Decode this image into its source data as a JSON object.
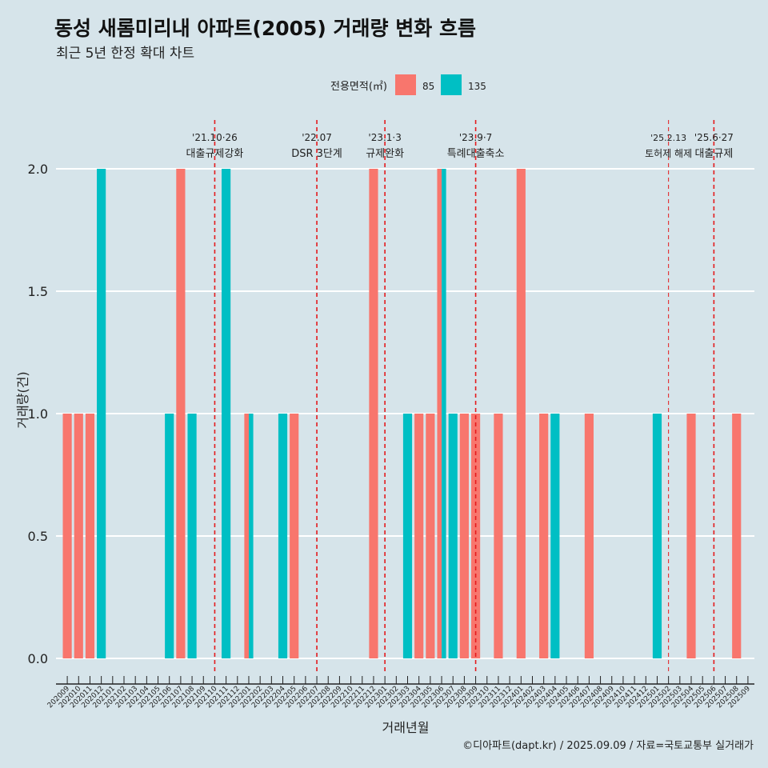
{
  "title": "동성 새롬미리내 아파트(2005) 거래량 변화 흐름",
  "subtitle": "최근 5년 한정 확대 차트",
  "caption": "©디아파트(dapt.kr) / 2025.09.09 / 자료=국토교통부 실거래가",
  "colors": {
    "background": "#d6e4ea",
    "grid": "#ffffff",
    "vline": "#e41a1c"
  },
  "chart_data": {
    "type": "bar",
    "xlabel": "거래년월",
    "ylabel": "거래량(건)",
    "ylim": [
      0,
      2
    ],
    "yticks": [
      0.0,
      0.5,
      1.0,
      1.5,
      2.0
    ],
    "ytick_labels": [
      "0.0",
      "0.5",
      "1.0",
      "1.5",
      "2.0"
    ],
    "grid": true,
    "legend": {
      "title": "전용면적(㎡)",
      "position": "top"
    },
    "categories": [
      "202009",
      "202010",
      "202011",
      "202012",
      "202101",
      "202102",
      "202103",
      "202104",
      "202105",
      "202106",
      "202107",
      "202108",
      "202109",
      "202110",
      "202111",
      "202112",
      "202201",
      "202202",
      "202203",
      "202204",
      "202205",
      "202206",
      "202207",
      "202208",
      "202209",
      "202210",
      "202211",
      "202212",
      "202301",
      "202302",
      "202303",
      "202304",
      "202305",
      "202306",
      "202307",
      "202308",
      "202309",
      "202310",
      "202311",
      "202312",
      "202401",
      "202402",
      "202403",
      "202404",
      "202405",
      "202406",
      "202407",
      "202408",
      "202409",
      "202410",
      "202411",
      "202412",
      "202501",
      "202502",
      "202503",
      "202504",
      "202505",
      "202506",
      "202507",
      "202508",
      "202509"
    ],
    "series": [
      {
        "name": "85",
        "color": "#f8766d",
        "values": [
          1,
          1,
          1,
          0,
          0,
          0,
          0,
          0,
          0,
          0,
          2,
          0,
          0,
          0,
          0,
          0,
          1,
          0,
          0,
          0,
          1,
          0,
          0,
          0,
          0,
          0,
          0,
          2,
          0,
          0,
          0,
          1,
          1,
          2,
          0,
          1,
          1,
          0,
          1,
          0,
          2,
          0,
          1,
          0,
          0,
          0,
          1,
          0,
          0,
          0,
          0,
          0,
          0,
          0,
          0,
          1,
          0,
          0,
          0,
          1,
          0
        ]
      },
      {
        "name": "135",
        "color": "#00bfc4",
        "values": [
          0,
          0,
          0,
          2,
          0,
          0,
          0,
          0,
          0,
          1,
          0,
          1,
          0,
          0,
          2,
          0,
          1,
          0,
          0,
          1,
          0,
          0,
          0,
          0,
          0,
          0,
          0,
          0,
          0,
          0,
          1,
          0,
          0,
          2,
          1,
          0,
          0,
          0,
          0,
          0,
          0,
          0,
          0,
          1,
          0,
          0,
          0,
          0,
          0,
          0,
          0,
          0,
          1,
          0,
          0,
          0,
          0,
          0,
          0,
          0,
          0
        ]
      }
    ],
    "events": [
      {
        "month": "202110",
        "date": "'21.10·26",
        "label": "대출규제강화",
        "style": "major"
      },
      {
        "month": "202207",
        "date": "'22.07",
        "label": "DSR 3단계",
        "style": "major"
      },
      {
        "month": "202301",
        "date": "'23.1·3",
        "label": "규제완화",
        "style": "major"
      },
      {
        "month": "202309",
        "date": "'23.9·7",
        "label": "특례대출축소",
        "style": "major"
      },
      {
        "month": "202502",
        "date": "'25.2.13",
        "label": "토허제 해제",
        "style": "minor"
      },
      {
        "month": "202506",
        "date": "'25.6·27",
        "label": "대출규제",
        "style": "major"
      }
    ]
  }
}
